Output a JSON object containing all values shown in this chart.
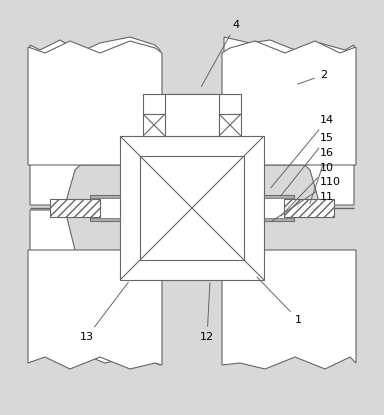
{
  "bg_color": "#d8d8d8",
  "line_color": "#666666",
  "white": "#ffffff",
  "label_fs": 8,
  "arrow_color": "#666666",
  "figsize": [
    3.84,
    4.15
  ],
  "dpi": 100
}
